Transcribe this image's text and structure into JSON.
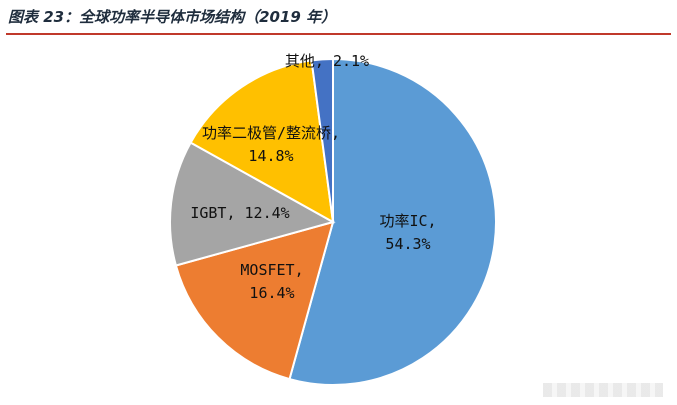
{
  "chart_data": {
    "type": "pie",
    "title": "图表 23：全球功率半导体市场结构（2019 年）",
    "slices": [
      {
        "name": "功率IC",
        "value": 54.3,
        "label_lines": [
          "功率IC,",
          "54.3%"
        ],
        "color": "#5b9bd5"
      },
      {
        "name": "MOSFET",
        "value": 16.4,
        "label_lines": [
          "MOSFET,",
          "16.4%"
        ],
        "color": "#ed7d31"
      },
      {
        "name": "IGBT",
        "value": 12.4,
        "label_lines": [
          "IGBT, 12.4%"
        ],
        "color": "#a5a5a5"
      },
      {
        "name": "功率二极管/整流桥",
        "value": 14.8,
        "label_lines": [
          "功率二极管/整流桥,",
          "14.8%"
        ],
        "color": "#ffc000"
      },
      {
        "name": "其他",
        "value": 2.1,
        "label_lines": [
          "其他, 2.1%"
        ],
        "color": "#4472c4"
      }
    ]
  }
}
